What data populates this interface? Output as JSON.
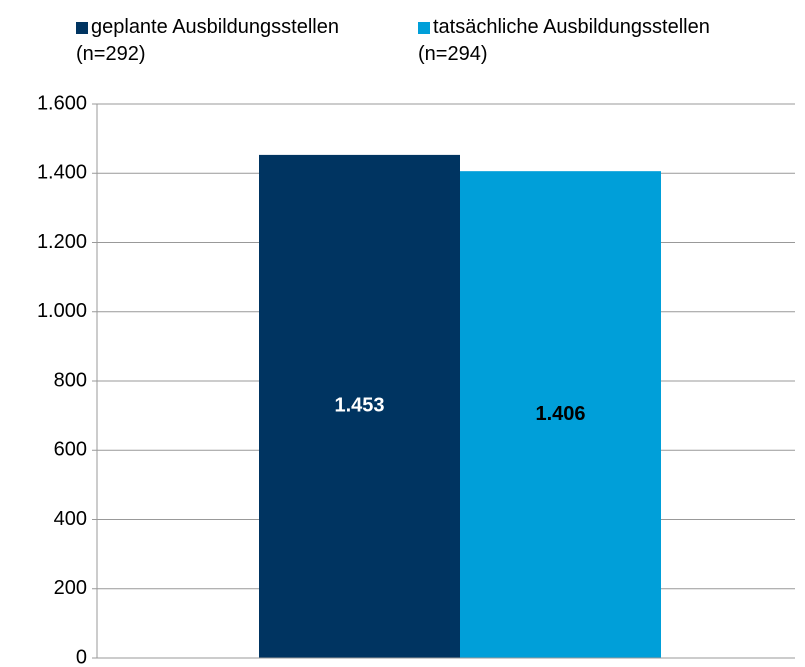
{
  "chart_data": {
    "type": "bar",
    "categories": [
      null
    ],
    "series": [
      {
        "name": "geplante Ausbildungsstellen\n(n=292)",
        "color": "#003461",
        "values": [
          1453
        ],
        "value_labels": [
          "1.453"
        ]
      },
      {
        "name": "tatsächliche Ausbildungsstellen\n(n=294)",
        "color": "#009fd9",
        "values": [
          1406
        ],
        "value_labels": [
          "1.406"
        ]
      }
    ],
    "ylim": [
      0,
      1600
    ],
    "yticks": [
      0,
      200,
      400,
      600,
      800,
      {
        "value": 1000,
        "label": "1.000"
      },
      {
        "value": 1200,
        "label": "1.200"
      },
      {
        "value": 1400,
        "label": "1.400"
      },
      {
        "value": 1600,
        "label": "1.600"
      }
    ],
    "grid": true,
    "legend": "top"
  }
}
